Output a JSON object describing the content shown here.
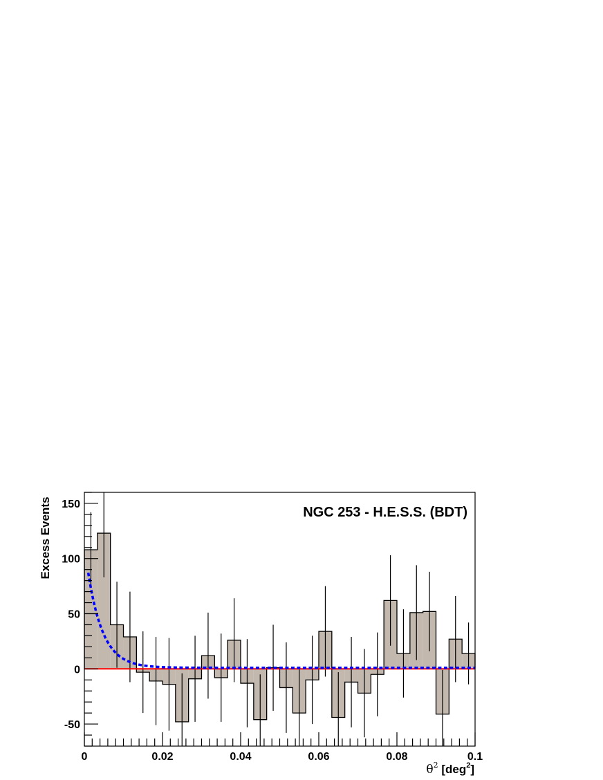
{
  "chart_data": {
    "type": "bar",
    "title": "NGC 253 - H.E.S.S. (BDT)",
    "ylabel": "Excess Events",
    "xlabel": {
      "symbol": "θ",
      "symbol_sup": "2",
      "text_before": " [deg",
      "unit_sup": "2",
      "text_after": "]"
    },
    "xlim": [
      0,
      0.1
    ],
    "ylim": [
      -70,
      160
    ],
    "x_ticks": [
      {
        "value": 0,
        "label": "0"
      },
      {
        "value": 0.02,
        "label": "0.02"
      },
      {
        "value": 0.04,
        "label": "0.04"
      },
      {
        "value": 0.06,
        "label": "0.06"
      },
      {
        "value": 0.08,
        "label": "0.08"
      },
      {
        "value": 0.1,
        "label": "0.1"
      }
    ],
    "y_ticks": [
      {
        "value": -50,
        "label": "-50"
      },
      {
        "value": 0,
        "label": "0"
      },
      {
        "value": 50,
        "label": "50"
      },
      {
        "value": 100,
        "label": "100"
      },
      {
        "value": 150,
        "label": "150"
      }
    ],
    "bin_width": 0.00333,
    "bins_center": [
      0.00167,
      0.005,
      0.00833,
      0.01167,
      0.015,
      0.01833,
      0.02167,
      0.025,
      0.02833,
      0.03167,
      0.035,
      0.03833,
      0.04167,
      0.045,
      0.04833,
      0.05167,
      0.055,
      0.05833,
      0.06167,
      0.065,
      0.06833,
      0.07167,
      0.075,
      0.07833,
      0.08167,
      0.085,
      0.08833,
      0.09167,
      0.095,
      0.09833
    ],
    "values": [
      108,
      123,
      40,
      29,
      -3,
      -11,
      -14,
      -48,
      -9,
      12,
      -8,
      26,
      -13,
      -46,
      1,
      -17,
      -40,
      -10,
      34,
      -44,
      -12,
      -22,
      -5,
      62,
      14,
      51,
      52,
      -41,
      27,
      14
    ],
    "errors": [
      34,
      40,
      39,
      41,
      37,
      40,
      42,
      44,
      39,
      39,
      40,
      38,
      40,
      41,
      39,
      41,
      40,
      40,
      41,
      41,
      41,
      40,
      38,
      41,
      40,
      43,
      36,
      40,
      39,
      28
    ],
    "fill_color": "#c2b8ad",
    "outline_color": "#000000",
    "fit_curve": {
      "type": "exponential",
      "amplitude": 112,
      "scale": 0.0038,
      "offset": 1,
      "color": "#0000ff",
      "style": "dashed"
    },
    "baseline": {
      "value": 0,
      "color": "#ff0000"
    },
    "grid": false,
    "legend": "none"
  }
}
